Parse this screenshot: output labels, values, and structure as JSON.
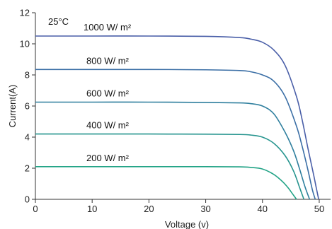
{
  "chart_data": {
    "type": "line",
    "title": "",
    "xlabel": "Voltage (v)",
    "ylabel": "Current(A)",
    "xlim": [
      0,
      52
    ],
    "ylim": [
      0,
      12
    ],
    "xticks": [
      0,
      10,
      20,
      30,
      40,
      50
    ],
    "yticks": [
      0,
      2,
      4,
      6,
      8,
      10,
      12
    ],
    "grid": false,
    "legend": "none",
    "annotation": "25°C",
    "series": [
      {
        "name": "1000 W/ m²",
        "color": "#4a5fa8",
        "x": [
          0,
          10,
          20,
          30,
          36,
          38,
          40,
          42,
          44,
          46,
          47,
          48,
          49,
          49.5,
          49.9
        ],
        "y": [
          10.5,
          10.5,
          10.5,
          10.48,
          10.4,
          10.3,
          10.1,
          9.6,
          8.6,
          6.6,
          5.1,
          3.3,
          1.6,
          0.7,
          0
        ]
      },
      {
        "name": "800 W/ m²",
        "color": "#3a6ea5",
        "x": [
          0,
          10,
          20,
          30,
          36,
          38,
          40,
          42,
          44,
          46,
          47,
          48,
          48.8,
          49.3
        ],
        "y": [
          8.35,
          8.35,
          8.35,
          8.33,
          8.28,
          8.2,
          8.0,
          7.6,
          6.6,
          4.7,
          3.4,
          1.9,
          0.6,
          0
        ]
      },
      {
        "name": "600 W/ m²",
        "color": "#2f7f9e",
        "x": [
          0,
          10,
          20,
          30,
          36,
          38,
          40,
          42,
          44,
          45.5,
          46.5,
          47.5,
          48.3
        ],
        "y": [
          6.25,
          6.25,
          6.25,
          6.23,
          6.2,
          6.15,
          6.0,
          5.5,
          4.3,
          3.1,
          2.0,
          0.8,
          0
        ]
      },
      {
        "name": "400 W/ m²",
        "color": "#27958f",
        "x": [
          0,
          10,
          20,
          30,
          36,
          38,
          40,
          42,
          44,
          45.5,
          46.5,
          47.3
        ],
        "y": [
          4.2,
          4.2,
          4.2,
          4.19,
          4.17,
          4.13,
          4.0,
          3.6,
          2.8,
          1.8,
          0.8,
          0
        ]
      },
      {
        "name": "200 W/ m²",
        "color": "#22a386",
        "x": [
          0,
          10,
          20,
          30,
          36,
          38,
          40,
          42,
          43.5,
          44.5,
          45.3,
          46
        ],
        "y": [
          2.1,
          2.1,
          2.1,
          2.1,
          2.09,
          2.05,
          1.95,
          1.6,
          1.15,
          0.75,
          0.35,
          0
        ]
      }
    ]
  }
}
